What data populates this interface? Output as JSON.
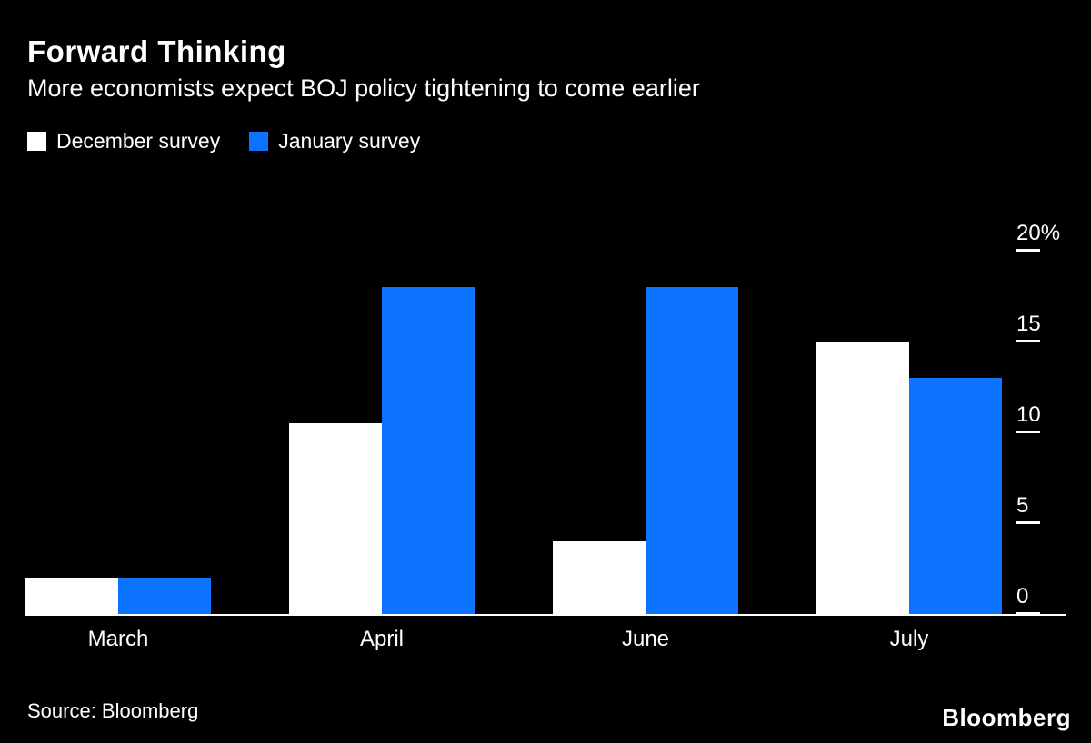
{
  "chart_data": {
    "type": "bar",
    "title": "Forward Thinking",
    "subtitle": "More economists expect BOJ policy tightening to come earlier",
    "categories": [
      "March",
      "April",
      "June",
      "July"
    ],
    "series": [
      {
        "name": "December survey",
        "color": "#ffffff",
        "values": [
          2,
          10.5,
          4,
          15
        ]
      },
      {
        "name": "January survey",
        "color": "#0d73ff",
        "values": [
          2,
          18,
          18,
          13
        ]
      }
    ],
    "unit": "%",
    "y_ticks": [
      {
        "value": 0,
        "label": "0"
      },
      {
        "value": 5,
        "label": "5"
      },
      {
        "value": 10,
        "label": "10"
      },
      {
        "value": 15,
        "label": "15"
      },
      {
        "value": 20,
        "label": "20%"
      }
    ],
    "ylim": [
      0,
      20
    ],
    "grid": false,
    "axis_side": "right",
    "legend_position": "top-left",
    "background_color": "#000000",
    "text_color": "#ffffff"
  },
  "footer": {
    "source": "Source: Bloomberg",
    "logo": "Bloomberg"
  }
}
